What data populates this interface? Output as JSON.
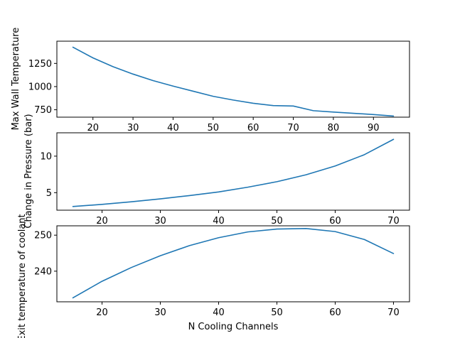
{
  "chart_data": [
    {
      "type": "line",
      "title": "",
      "xlabel": "",
      "ylabel": "Max Wall Temperature",
      "x": [
        15,
        20,
        25,
        30,
        35,
        40,
        45,
        50,
        55,
        60,
        65,
        70,
        75,
        80,
        85,
        90,
        95
      ],
      "series": [
        {
          "values": [
            1425,
            1310,
            1215,
            1135,
            1065,
            1005,
            950,
            895,
            855,
            820,
            795,
            790,
            740,
            725,
            712,
            698,
            682
          ]
        }
      ],
      "xlim": [
        11,
        99
      ],
      "ylim": [
        670,
        1490
      ],
      "xticks": [
        20,
        30,
        40,
        50,
        60,
        70,
        80,
        90
      ],
      "yticks": [
        750,
        1000,
        1250
      ],
      "grid": false,
      "color": "#1f77b4"
    },
    {
      "type": "line",
      "title": "",
      "xlabel": "",
      "ylabel": "Change in Pressure (bar)",
      "x": [
        15,
        20,
        25,
        30,
        35,
        40,
        45,
        50,
        55,
        60,
        65,
        70
      ],
      "series": [
        {
          "values": [
            3.1,
            3.4,
            3.75,
            4.15,
            4.6,
            5.1,
            5.75,
            6.5,
            7.45,
            8.65,
            10.2,
            12.3
          ]
        }
      ],
      "xlim": [
        12.25,
        72.75
      ],
      "ylim": [
        2.6,
        13.2
      ],
      "xticks": [
        20,
        30,
        40,
        50,
        60,
        70
      ],
      "yticks": [
        5,
        10
      ],
      "grid": false,
      "color": "#1f77b4"
    },
    {
      "type": "line",
      "title": "",
      "xlabel": "N Cooling Channels",
      "ylabel": "Exit temperature of coolant",
      "x": [
        15,
        20,
        25,
        30,
        35,
        40,
        45,
        50,
        55,
        60,
        65,
        70
      ],
      "series": [
        {
          "values": [
            232.6,
            237.2,
            241.0,
            244.3,
            247.1,
            249.3,
            250.9,
            251.7,
            251.85,
            251.0,
            248.8,
            244.9
          ]
        }
      ],
      "xlim": [
        12.25,
        72.75
      ],
      "ylim": [
        231.5,
        252.6
      ],
      "xticks": [
        20,
        30,
        40,
        50,
        60,
        70
      ],
      "yticks": [
        240,
        250
      ],
      "grid": false,
      "color": "#1f77b4"
    }
  ]
}
